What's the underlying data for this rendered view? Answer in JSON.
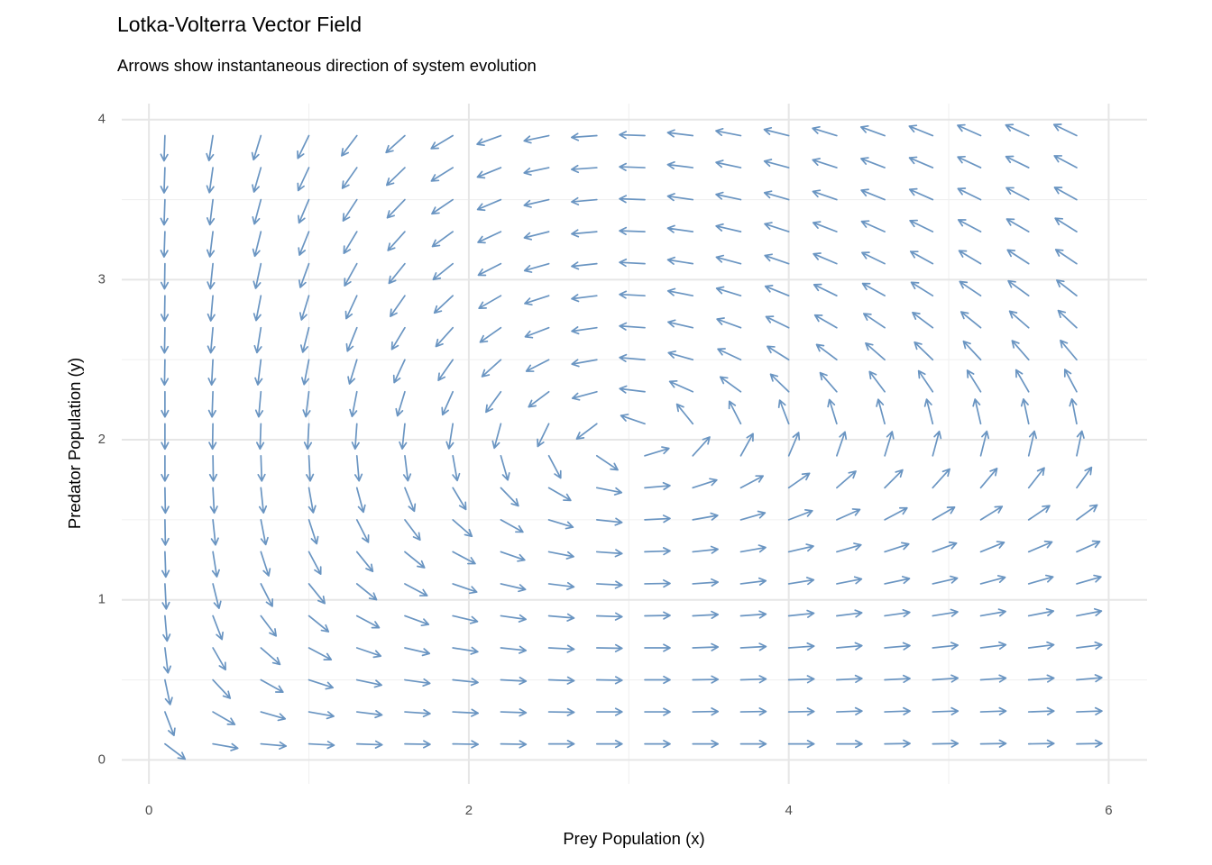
{
  "chart_data": {
    "type": "vector_field",
    "title": "Lotka-Volterra Vector Field",
    "subtitle": "Arrows show instantaneous direction of system evolution",
    "x_label": "Prey Population (x)",
    "y_label": "Predator Population (y)",
    "color": "#6a95c2",
    "xlim": [
      -0.17,
      6.24
    ],
    "ylim": [
      -0.15,
      4.1
    ],
    "xticks": [
      0,
      2,
      4,
      6
    ],
    "yticks": [
      0,
      1,
      2,
      3,
      4
    ],
    "minor_xticks": [
      1,
      3,
      5
    ],
    "minor_yticks": [
      0.5,
      1.5,
      2.5,
      3.5
    ],
    "grid": true,
    "x": [
      0.1,
      0.4,
      0.7,
      1.0,
      1.3,
      1.6,
      1.9,
      2.2,
      2.5,
      2.8,
      3.1,
      3.4,
      3.7,
      4.0,
      4.3,
      4.6,
      4.9,
      5.2,
      5.5,
      5.8
    ],
    "y": [
      0.1,
      0.3,
      0.5,
      0.7,
      0.9,
      1.1,
      1.3,
      1.5,
      1.7,
      1.9,
      2.1,
      2.3,
      2.5,
      2.7,
      2.9,
      3.1,
      3.3,
      3.5,
      3.7,
      3.9
    ],
    "angles": [
      [
        -37,
        -10,
        -5,
        -3,
        -2,
        -1,
        -1,
        -1,
        0,
        0,
        0,
        0,
        0,
        0,
        0,
        1,
        1,
        1,
        1,
        1
      ],
      [
        -69,
        -30,
        -16,
        -10,
        -7,
        -4,
        -3,
        -2,
        -1,
        0,
        0,
        1,
        1,
        1,
        2,
        2,
        2,
        2,
        2,
        2
      ],
      [
        -78,
        -47,
        -29,
        -18,
        -12,
        -8,
        -6,
        -3,
        -2,
        -1,
        0,
        1,
        2,
        2,
        3,
        3,
        4,
        4,
        4,
        5
      ],
      [
        -83,
        -60,
        -41,
        -28,
        -19,
        -13,
        -9,
        -6,
        -3,
        -1,
        0,
        2,
        3,
        4,
        5,
        5,
        6,
        7,
        7,
        7
      ],
      [
        -85,
        -69,
        -53,
        -39,
        -28,
        -20,
        -13,
        -8,
        -5,
        -2,
        1,
        3,
        4,
        6,
        7,
        8,
        9,
        10,
        11,
        11
      ],
      [
        -87,
        -76,
        -63,
        -51,
        -39,
        -28,
        -19,
        -13,
        -7,
        -3,
        1,
        4,
        7,
        9,
        11,
        12,
        13,
        15,
        16,
        16
      ],
      [
        -88,
        -81,
        -72,
        -62,
        -51,
        -39,
        -28,
        -19,
        -11,
        -4,
        2,
        6,
        10,
        13,
        16,
        18,
        20,
        22,
        23,
        24
      ],
      [
        -89,
        -84,
        -79,
        -72,
        -63,
        -53,
        -41,
        -29,
        -17,
        -6,
        3,
        10,
        16,
        21,
        24,
        28,
        30,
        32,
        34,
        36
      ],
      [
        -89,
        -87,
        -84,
        -80,
        -75,
        -68,
        -59,
        -46,
        -30,
        -11,
        5,
        18,
        28,
        35,
        41,
        45,
        48,
        50,
        52,
        54
      ],
      [
        -90,
        -89,
        -88,
        -87,
        -85,
        -83,
        -80,
        -74,
        -62,
        -34,
        17,
        48,
        61,
        67,
        71,
        73,
        75,
        76,
        77,
        78
      ],
      [
        -90,
        -91,
        -92,
        -93,
        -94,
        -96,
        -99,
        -105,
        -116,
        -143,
        161,
        129,
        117,
        111,
        107,
        105,
        104,
        103,
        102,
        101
      ],
      [
        -90,
        -92,
        -95,
        -97,
        -101,
        -107,
        -114,
        -126,
        -143,
        -165,
        173,
        156,
        144,
        136,
        131,
        127,
        124,
        122,
        120,
        118
      ],
      [
        -91,
        -93,
        -97,
        -101,
        -107,
        -115,
        -125,
        -138,
        -153,
        -170,
        175,
        164,
        155,
        148,
        143,
        139,
        136,
        133,
        131,
        130
      ],
      [
        -91,
        -95,
        -99,
        -104,
        -112,
        -121,
        -132,
        -145,
        -159,
        -172,
        176,
        167,
        160,
        154,
        150,
        146,
        143,
        141,
        139,
        137
      ],
      [
        -91,
        -95,
        -101,
        -107,
        -115,
        -125,
        -137,
        -150,
        -162,
        -173,
        177,
        169,
        163,
        158,
        154,
        151,
        148,
        146,
        144,
        142
      ],
      [
        -91,
        -96,
        -102,
        -110,
        -119,
        -129,
        -141,
        -153,
        -164,
        -174,
        177,
        171,
        165,
        161,
        157,
        154,
        151,
        149,
        147,
        146
      ],
      [
        -92,
        -97,
        -104,
        -112,
        -121,
        -132,
        -144,
        -155,
        -166,
        -175,
        178,
        172,
        167,
        162,
        159,
        156,
        154,
        152,
        150,
        148
      ],
      [
        -92,
        -97,
        -105,
        -113,
        -123,
        -134,
        -146,
        -157,
        -167,
        -175,
        178,
        172,
        168,
        164,
        161,
        158,
        156,
        154,
        152,
        151
      ],
      [
        -92,
        -98,
        -106,
        -115,
        -125,
        -136,
        -148,
        -158,
        -168,
        -176,
        178,
        173,
        168,
        165,
        162,
        159,
        157,
        155,
        154,
        152
      ],
      [
        -92,
        -99,
        -107,
        -116,
        -127,
        -138,
        -149,
        -160,
        -168,
        -176,
        178,
        173,
        169,
        166,
        163,
        160,
        158,
        156,
        155,
        154
      ]
    ]
  }
}
